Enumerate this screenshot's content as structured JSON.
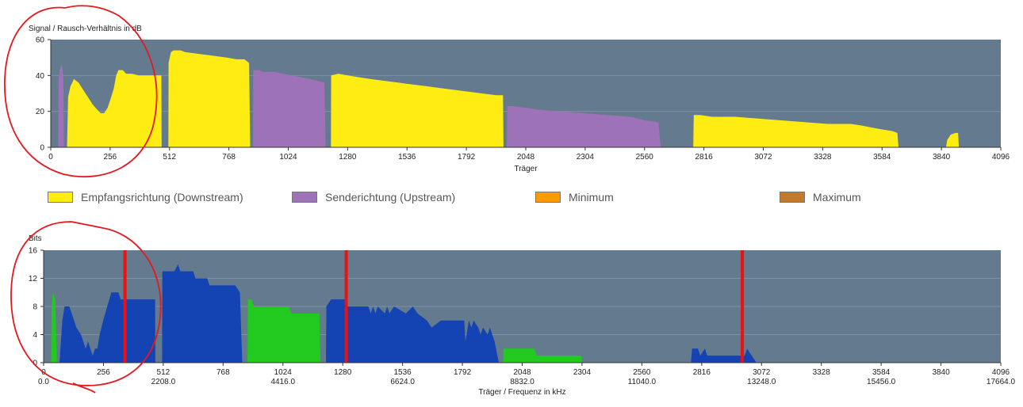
{
  "colors": {
    "plot_bg": "#647a8e",
    "grid": "#7e92a4",
    "downstream": "#ffec12",
    "upstream": "#9d72b9",
    "minimum": "#ff9900",
    "maximum": "#c27a2a",
    "bits_downstream": "#1443b3",
    "bits_upstream": "#22c91e",
    "marker": "#ee1111",
    "annotation": "#e4191f"
  },
  "legend": {
    "downstream": "Empfangsrichtung (Downstream)",
    "upstream": "Senderichtung (Upstream)",
    "minimum": "Minimum",
    "maximum": "Maximum"
  },
  "chart_data": [
    {
      "type": "area",
      "ylabel": "Signal / Rausch-Verhältnis in dB",
      "xlabel": "Träger",
      "xlim": [
        0,
        4096
      ],
      "ylim": [
        0,
        60
      ],
      "yticks": [
        0,
        20,
        40,
        60
      ],
      "xticks": [
        0,
        256,
        512,
        768,
        1024,
        1280,
        1536,
        1792,
        2048,
        2304,
        2560,
        2816,
        3072,
        3328,
        3584,
        3840,
        4096
      ],
      "grid": true,
      "series": [
        {
          "name": "Senderichtung (Upstream)",
          "color_key": "upstream",
          "segments": [
            [
              [
                32,
                0
              ],
              [
                34,
                38
              ],
              [
                40,
                44
              ],
              [
                48,
                46
              ],
              [
                54,
                40
              ],
              [
                57,
                0
              ]
            ],
            [
              [
                872,
                0
              ],
              [
                873,
                43
              ],
              [
                900,
                43
              ],
              [
                910,
                42
              ],
              [
                960,
                42
              ],
              [
                1000,
                41
              ],
              [
                1040,
                40
              ],
              [
                1080,
                39
              ],
              [
                1120,
                38
              ],
              [
                1150,
                37
              ],
              [
                1180,
                36
              ],
              [
                1185,
                0
              ]
            ],
            [
              [
                1966,
                0
              ],
              [
                1968,
                23
              ],
              [
                1990,
                23
              ],
              [
                2048,
                22
              ],
              [
                2100,
                21
              ],
              [
                2200,
                20
              ],
              [
                2300,
                19
              ],
              [
                2400,
                18
              ],
              [
                2500,
                17
              ],
              [
                2560,
                15
              ],
              [
                2620,
                14
              ],
              [
                2630,
                0
              ]
            ]
          ]
        },
        {
          "name": "Empfangsrichtung (Downstream)",
          "color_key": "downstream",
          "segments": [
            [
              [
                70,
                0
              ],
              [
                75,
                28
              ],
              [
                85,
                34
              ],
              [
                100,
                38
              ],
              [
                120,
                36
              ],
              [
                140,
                32
              ],
              [
                160,
                28
              ],
              [
                180,
                24
              ],
              [
                200,
                21
              ],
              [
                215,
                19
              ],
              [
                230,
                19
              ],
              [
                245,
                22
              ],
              [
                258,
                27
              ],
              [
                272,
                33
              ],
              [
                282,
                40
              ],
              [
                292,
                43
              ],
              [
                310,
                43
              ],
              [
                325,
                41
              ],
              [
                350,
                41
              ],
              [
                380,
                40
              ],
              [
                420,
                40
              ],
              [
                450,
                40
              ],
              [
                477,
                40
              ],
              [
                478,
                0
              ]
            ],
            [
              [
                507,
                0
              ],
              [
                508,
                47
              ],
              [
                518,
                53
              ],
              [
                530,
                54
              ],
              [
                560,
                54
              ],
              [
                580,
                53
              ],
              [
                640,
                52
              ],
              [
                700,
                51
              ],
              [
                760,
                50
              ],
              [
                800,
                49
              ],
              [
                835,
                49
              ],
              [
                855,
                47
              ],
              [
                860,
                0
              ]
            ],
            [
              [
                1208,
                0
              ],
              [
                1209,
                40
              ],
              [
                1240,
                41
              ],
              [
                1280,
                40
              ],
              [
                1330,
                39
              ],
              [
                1380,
                38
              ],
              [
                1440,
                37
              ],
              [
                1500,
                36
              ],
              [
                1560,
                35
              ],
              [
                1620,
                34
              ],
              [
                1680,
                33
              ],
              [
                1740,
                32
              ],
              [
                1800,
                31
              ],
              [
                1860,
                30
              ],
              [
                1920,
                29
              ],
              [
                1950,
                29
              ],
              [
                1952,
                0
              ]
            ],
            [
              [
                2770,
                0
              ],
              [
                2772,
                18
              ],
              [
                2800,
                18
              ],
              [
                2850,
                17
              ],
              [
                2950,
                17
              ],
              [
                3050,
                16
              ],
              [
                3150,
                15
              ],
              [
                3250,
                14
              ],
              [
                3350,
                13
              ],
              [
                3450,
                13
              ],
              [
                3500,
                12
              ],
              [
                3540,
                11
              ],
              [
                3580,
                10
              ],
              [
                3630,
                9
              ],
              [
                3650,
                8
              ],
              [
                3655,
                0
              ]
            ],
            [
              [
                3860,
                0
              ],
              [
                3865,
                4
              ],
              [
                3880,
                7
              ],
              [
                3900,
                8
              ],
              [
                3912,
                8
              ],
              [
                3915,
                0
              ]
            ]
          ]
        }
      ]
    },
    {
      "type": "area",
      "ylabel": "Bits",
      "xlabel": "Träger / Frequenz in kHz",
      "xlim": [
        0,
        4096
      ],
      "ylim": [
        0,
        16
      ],
      "yticks": [
        0,
        4,
        8,
        12,
        16
      ],
      "xticks": [
        0,
        256,
        512,
        768,
        1024,
        1280,
        1536,
        1792,
        2048,
        2304,
        2560,
        2816,
        3072,
        3328,
        3584,
        3840,
        4096
      ],
      "freq_labels": [
        "0.0",
        "",
        "2208.0",
        "",
        "4416.0",
        "",
        "6624.0",
        "",
        "8832.0",
        "",
        "11040.0",
        "",
        "13248.0",
        "",
        "15456.0",
        "",
        "17664.0"
      ],
      "grid": true,
      "markers_x": [
        348,
        1295,
        2990
      ],
      "series": [
        {
          "name": "Upstream",
          "color_key": "bits_upstream",
          "segments": [
            [
              [
                32,
                0
              ],
              [
                34,
                8
              ],
              [
                40,
                10
              ],
              [
                50,
                9
              ],
              [
                57,
                0
              ]
            ],
            [
              [
                872,
                0
              ],
              [
                874,
                9
              ],
              [
                890,
                9
              ],
              [
                900,
                8
              ],
              [
                1000,
                8
              ],
              [
                1050,
                8
              ],
              [
                1060,
                7
              ],
              [
                1150,
                7
              ],
              [
                1180,
                7
              ],
              [
                1185,
                0
              ]
            ],
            [
              [
                1966,
                0
              ],
              [
                1968,
                2
              ],
              [
                2100,
                2
              ],
              [
                2110,
                1
              ],
              [
                2300,
                1
              ],
              [
                2305,
                0
              ]
            ]
          ]
        },
        {
          "name": "Downstream",
          "color_key": "bits_downstream",
          "segments": [
            [
              [
                68,
                0
              ],
              [
                72,
                2
              ],
              [
                80,
                6
              ],
              [
                90,
                8
              ],
              [
                110,
                8
              ],
              [
                120,
                7
              ],
              [
                140,
                5
              ],
              [
                160,
                4
              ],
              [
                170,
                3
              ],
              [
                180,
                2
              ],
              [
                190,
                3
              ],
              [
                200,
                2
              ],
              [
                210,
                1
              ],
              [
                220,
                2
              ],
              [
                230,
                2
              ],
              [
                240,
                4
              ],
              [
                255,
                6
              ],
              [
                272,
                8
              ],
              [
                290,
                10
              ],
              [
                320,
                10
              ],
              [
                330,
                9
              ],
              [
                477,
                9
              ],
              [
                478,
                0
              ]
            ],
            [
              [
                507,
                0
              ],
              [
                508,
                13
              ],
              [
                560,
                13
              ],
              [
                575,
                14
              ],
              [
                585,
                13
              ],
              [
                640,
                13
              ],
              [
                650,
                12
              ],
              [
                700,
                12
              ],
              [
                710,
                11
              ],
              [
                820,
                11
              ],
              [
                840,
                10
              ],
              [
                850,
                0
              ]
            ],
            [
              [
                1208,
                0
              ],
              [
                1210,
                8
              ],
              [
                1230,
                9
              ],
              [
                1290,
                9
              ],
              [
                1300,
                8
              ],
              [
                1390,
                8
              ],
              [
                1400,
                7
              ],
              [
                1410,
                8
              ],
              [
                1420,
                7
              ],
              [
                1430,
                8
              ],
              [
                1460,
                7
              ],
              [
                1470,
                8
              ],
              [
                1480,
                7
              ],
              [
                1500,
                8
              ],
              [
                1550,
                7
              ],
              [
                1580,
                8
              ],
              [
                1600,
                7
              ],
              [
                1640,
                6
              ],
              [
                1660,
                5
              ],
              [
                1700,
                6
              ],
              [
                1800,
                6
              ],
              [
                1805,
                3
              ],
              [
                1820,
                6
              ],
              [
                1830,
                5
              ],
              [
                1840,
                6
              ],
              [
                1860,
                5
              ],
              [
                1870,
                4
              ],
              [
                1880,
                5
              ],
              [
                1900,
                4
              ],
              [
                1910,
                5
              ],
              [
                1930,
                3
              ],
              [
                1948,
                0
              ]
            ],
            [
              [
                2770,
                0
              ],
              [
                2775,
                2
              ],
              [
                2800,
                2
              ],
              [
                2810,
                1
              ],
              [
                2830,
                2
              ],
              [
                2840,
                1
              ],
              [
                3000,
                1
              ],
              [
                3010,
                2
              ],
              [
                3030,
                1
              ],
              [
                3050,
                0
              ]
            ]
          ]
        }
      ]
    }
  ]
}
